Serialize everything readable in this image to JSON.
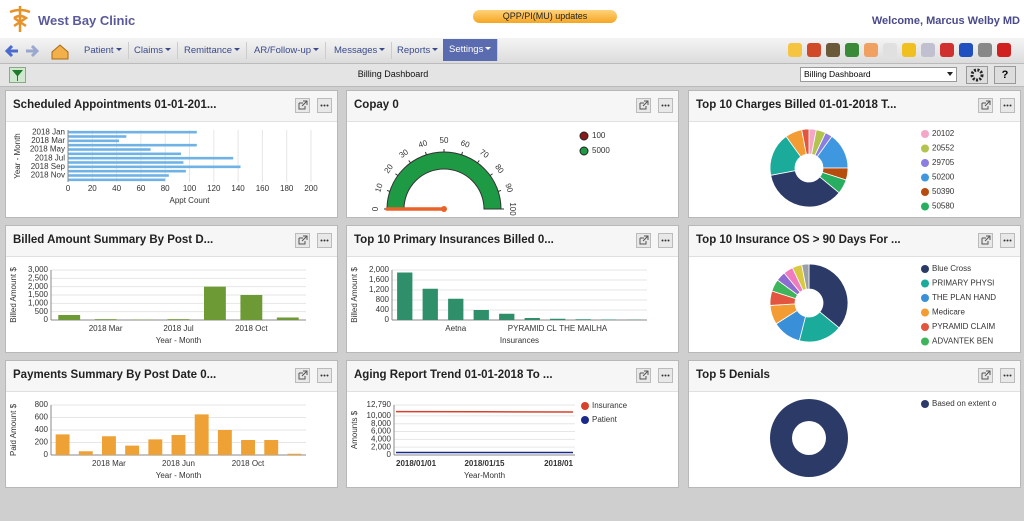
{
  "header": {
    "clinic": "West Bay Clinic",
    "banner": "QPP/PI(MU) updates",
    "welcome": "Welcome, Marcus Welby MD"
  },
  "menu": [
    "Patient",
    "Claims",
    "Remittance",
    "AR/Follow-up",
    "Messages",
    "Reports",
    "Settings"
  ],
  "toolbar": {
    "title": "Billing Dashboard",
    "view": "Billing Dashboard",
    "help": "?"
  },
  "chart_data": [
    {
      "title": "Scheduled Appointments 01-01-201...",
      "type": "bar",
      "orientation": "horizontal",
      "categories": [
        "2018 Jan",
        null,
        "2018 Mar",
        null,
        "2018 May",
        null,
        "2018 Jul",
        null,
        "2018 Sep",
        null,
        "2018 Nov",
        null
      ],
      "values": [
        106,
        48,
        42,
        106,
        68,
        93,
        136,
        95,
        142,
        97,
        83,
        80
      ],
      "color": "#6fb3e6",
      "xlim": [
        0,
        200
      ],
      "xticks": [
        0,
        20,
        40,
        60,
        80,
        100,
        120,
        140,
        160,
        180,
        200
      ],
      "x_label": "Appt Count",
      "y_label": "Year - Month",
      "grid": true
    },
    {
      "title": "Copay 0",
      "type": "gauge",
      "value": 0,
      "ylim": [
        0,
        100
      ],
      "yticks": [
        0,
        10,
        20,
        30,
        40,
        50,
        60,
        70,
        80,
        90,
        100
      ],
      "bands": [
        {
          "name": "100",
          "color": "#8b1a1a"
        },
        {
          "name": "5000",
          "color": "#1e9a45"
        }
      ],
      "needle_color": "#e8622a"
    },
    {
      "title": "Top 10 Charges Billed 01-01-2018 T...",
      "type": "donut",
      "categories": [
        "20102",
        "20552",
        "29705",
        "50200",
        "50390",
        "50580",
        null,
        null,
        null,
        null
      ],
      "values": [
        3,
        4,
        3,
        15,
        5,
        6,
        36,
        18,
        7,
        3
      ],
      "colors": [
        "#f4a6c6",
        "#b3c34e",
        "#8a7fe0",
        "#3f97e0",
        "#b74c0f",
        "#27ae60",
        "#2b3a67",
        "#1aab9b",
        "#f39c34",
        "#e2553f"
      ]
    },
    {
      "title": "Billed Amount Summary By Post D...",
      "type": "bar",
      "orientation": "vertical",
      "categories": [
        null,
        "2018 Mar",
        null,
        "2018 Jul",
        null,
        "2018 Oct",
        null
      ],
      "values": [
        300,
        50,
        20,
        50,
        2000,
        1500,
        150
      ],
      "color": "#6e9a35",
      "ylim": [
        0,
        3000
      ],
      "yticks": [
        0,
        500,
        {
          "value": 1000,
          "label": "1,000"
        },
        {
          "value": 1500,
          "label": "1,500"
        },
        {
          "value": 2000,
          "label": "2,000"
        },
        {
          "value": 2500,
          "label": "2,500"
        },
        {
          "value": 3000,
          "label": "3,000"
        }
      ],
      "x_label": "Year - Month",
      "y_label": "Billed Amount $",
      "grid": true
    },
    {
      "title": "Top 10 Primary Insurances Billed 0...",
      "type": "bar",
      "orientation": "vertical",
      "categories": [
        null,
        null,
        "Aetna",
        null,
        null,
        "PYRAMID CL",
        null,
        "THE MAILHA",
        null,
        null
      ],
      "values": [
        1900,
        1250,
        850,
        400,
        250,
        80,
        50,
        30,
        20,
        10
      ],
      "color": "#2f8f6b",
      "ylim": [
        0,
        2000
      ],
      "yticks": [
        0,
        400,
        800,
        {
          "value": 1200,
          "label": "1,200"
        },
        {
          "value": 1600,
          "label": "1,600"
        },
        {
          "value": 2000,
          "label": "2,000"
        }
      ],
      "x_label": "Insurances",
      "y_label": "Billed Amount $",
      "grid": true
    },
    {
      "title": "Top 10 Insurance OS > 90 Days For ...",
      "type": "donut",
      "categories": [
        "Blue Cross",
        "PRIMARY PHYSI",
        "THE PLAN HAND",
        "Medicare",
        "PYRAMID CLAIM",
        "ADVANTEK BEN",
        null,
        null,
        null,
        null
      ],
      "values": [
        36,
        18,
        12,
        8,
        6,
        5,
        4,
        4,
        4,
        3
      ],
      "colors": [
        "#2b3a67",
        "#1aab9b",
        "#3a8fd9",
        "#f39c34",
        "#e2553f",
        "#3fb55b",
        "#8e6bd1",
        "#f07bbf",
        "#d8c940",
        "#9aa0a6"
      ]
    },
    {
      "title": "Payments Summary By Post Date 0...",
      "type": "bar",
      "orientation": "vertical",
      "categories": [
        null,
        null,
        "2018 Mar",
        null,
        null,
        "2018 Jun",
        null,
        null,
        "2018 Oct",
        null,
        null
      ],
      "values": [
        330,
        60,
        300,
        150,
        250,
        320,
        650,
        400,
        240,
        240,
        20
      ],
      "color": "#eea236",
      "ylim": [
        0,
        800
      ],
      "yticks": [
        0,
        200,
        400,
        600,
        800
      ],
      "x_label": "Year - Month",
      "y_label": "Paid Amount $",
      "grid": true
    },
    {
      "title": "Aging Report Trend 01-01-2018 To ...",
      "type": "line",
      "x": [
        "2018/01/01",
        "2018/01/15",
        "2018/01"
      ],
      "series": [
        {
          "name": "Insurance",
          "color": "#d9402b",
          "values": [
            11100,
            11050,
            11000
          ]
        },
        {
          "name": "Patient",
          "color": "#1a2a8a",
          "values": [
            650,
            640,
            630
          ]
        }
      ],
      "ylim": [
        0,
        12790
      ],
      "yticks": [
        0,
        {
          "value": 2000,
          "label": "2,000"
        },
        {
          "value": 4000,
          "label": "4,000"
        },
        {
          "value": 6000,
          "label": "6,000"
        },
        {
          "value": 8000,
          "label": "8,000"
        },
        {
          "value": 10000,
          "label": "10,000"
        },
        {
          "value": 12790,
          "label": "12,790"
        }
      ],
      "x_label": "Year-Month",
      "y_label": "Amounts $",
      "grid": true
    },
    {
      "title": "Top 5 Denials",
      "type": "donut",
      "categories": [
        "Based on extent o"
      ],
      "values": [
        100
      ],
      "colors": [
        "#2b3a67"
      ]
    }
  ]
}
